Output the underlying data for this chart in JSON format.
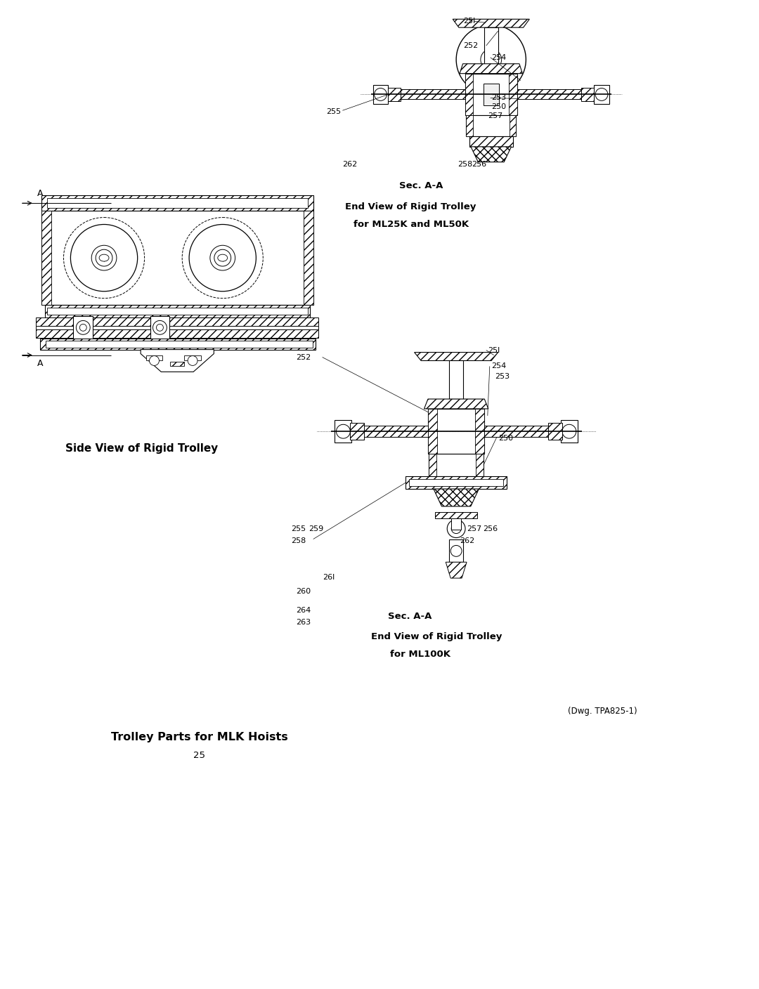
{
  "bg_color": "#ffffff",
  "line_color": "#000000",
  "page_title": "Trolley Parts for MLK Hoists",
  "page_number": "25",
  "dwg_number": "(Dwg. TPA825-1)",
  "side_view_label": "Side View of Rigid Trolley",
  "sec_aa_1": "Sec. A-A",
  "end_view_1a": "End View of Rigid Trolley",
  "end_view_1b": "for ML25K and ML50K",
  "sec_aa_2": "Sec. A-A",
  "end_view_2a": "End View of Rigid Trolley",
  "end_view_2b": "for ML100K",
  "fig_width": 10.8,
  "fig_height": 14.08,
  "dpi": 100
}
